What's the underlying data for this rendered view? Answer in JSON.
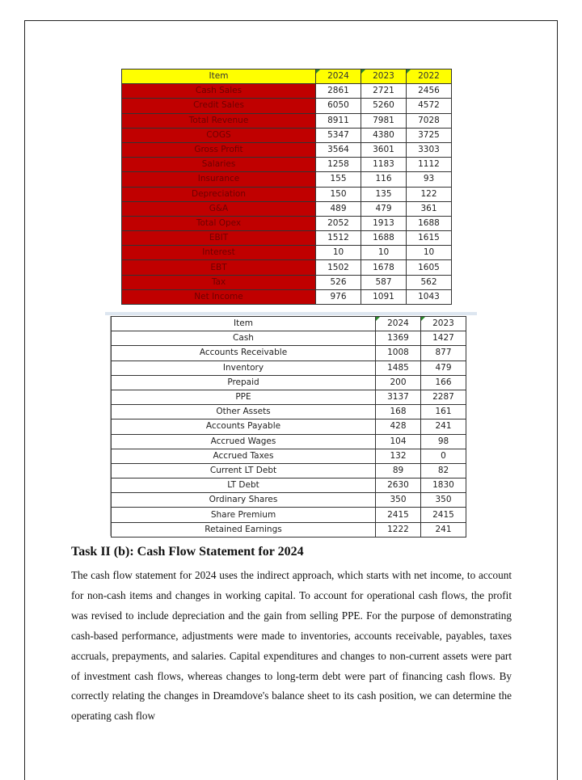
{
  "income_statement": {
    "headers": [
      "Item",
      "2024",
      "2023",
      "2022"
    ],
    "rows": [
      [
        "Cash Sales",
        "2861",
        "2721",
        "2456"
      ],
      [
        "Credit Sales",
        "6050",
        "5260",
        "4572"
      ],
      [
        "Total Revenue",
        "8911",
        "7981",
        "7028"
      ],
      [
        "COGS",
        "5347",
        "4380",
        "3725"
      ],
      [
        "Gross Profit",
        "3564",
        "3601",
        "3303"
      ],
      [
        "Salaries",
        "1258",
        "1183",
        "1112"
      ],
      [
        "Insurance",
        "155",
        "116",
        "93"
      ],
      [
        "Depreciation",
        "150",
        "135",
        "122"
      ],
      [
        "G&A",
        "489",
        "479",
        "361"
      ],
      [
        "Total Opex",
        "2052",
        "1913",
        "1688"
      ],
      [
        "EBIT",
        "1512",
        "1688",
        "1615"
      ],
      [
        "Interest",
        "10",
        "10",
        "10"
      ],
      [
        "EBT",
        "1502",
        "1678",
        "1605"
      ],
      [
        "Tax",
        "526",
        "587",
        "562"
      ],
      [
        "Net Income",
        "976",
        "1091",
        "1043"
      ]
    ],
    "colors": {
      "header": "#ffff00",
      "item_bg": "#c00000"
    }
  },
  "balance_sheet": {
    "headers": [
      "Item",
      "2024",
      "2023"
    ],
    "rows": [
      [
        "Cash",
        "1369",
        "1427"
      ],
      [
        "Accounts Receivable",
        "1008",
        "877"
      ],
      [
        "Inventory",
        "1485",
        "479"
      ],
      [
        "Prepaid",
        "200",
        "166"
      ],
      [
        "PPE",
        "3137",
        "2287"
      ],
      [
        "Other Assets",
        "168",
        "161"
      ],
      [
        "Accounts Payable",
        "428",
        "241"
      ],
      [
        "Accrued Wages",
        "104",
        "98"
      ],
      [
        "Accrued Taxes",
        "132",
        "0"
      ],
      [
        "Current LT Debt",
        "89",
        "82"
      ],
      [
        "LT Debt",
        "2630",
        "1830"
      ],
      [
        "Ordinary Shares",
        "350",
        "350"
      ],
      [
        "Share Premium",
        "2415",
        "2415"
      ],
      [
        "Retained Earnings",
        "1222",
        "241"
      ]
    ]
  },
  "section": {
    "heading": "Task II (b): Cash Flow Statement for 2024",
    "paragraph": "The cash flow statement for 2024 uses the indirect approach, which starts with net income, to account for non-cash items and changes in working capital. To account for operational cash flows, the profit was revised to include depreciation and the gain from selling PPE. For the purpose of demonstrating cash-based performance, adjustments were made to inventories, accounts receivable, payables, taxes accruals, prepayments, and salaries. Capital expenditures and changes to non-current assets were part of investment cash flows, whereas changes to long-term debt were part of financing cash flows. By correctly relating the changes in Dreamdove's balance sheet to its cash position, we can determine the operating cash flow"
  }
}
